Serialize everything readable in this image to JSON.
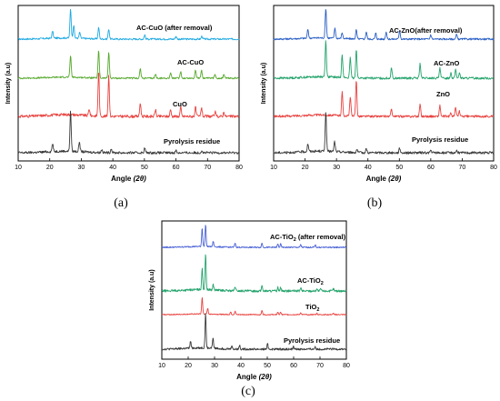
{
  "chart_data": [
    {
      "type": "line",
      "panel": "(a)",
      "xlabel": "Angle",
      "xlabel_var": "(2θ)",
      "ylabel": "Intensity (a.u)",
      "xlim": [
        10,
        80
      ],
      "xticks": [
        10,
        20,
        30,
        40,
        50,
        60,
        70,
        80
      ],
      "series": [
        {
          "name": "AC-CuO (after removal)",
          "color": "#1fa9e1",
          "peaks": [
            [
              20.9,
              0.25
            ],
            [
              26.6,
              1.0
            ],
            [
              27.6,
              0.45
            ],
            [
              29.5,
              0.2
            ],
            [
              35.5,
              0.4
            ],
            [
              38.7,
              0.35
            ],
            [
              50.1,
              0.15
            ],
            [
              60.0,
              0.1
            ],
            [
              68.2,
              0.1
            ]
          ]
        },
        {
          "name": "AC-CuO",
          "color": "#55a82c",
          "peaks": [
            [
              26.6,
              0.8
            ],
            [
              35.5,
              1.0
            ],
            [
              38.7,
              0.95
            ],
            [
              48.7,
              0.35
            ],
            [
              53.5,
              0.15
            ],
            [
              58.3,
              0.2
            ],
            [
              61.5,
              0.25
            ],
            [
              66.2,
              0.3
            ],
            [
              68.1,
              0.3
            ],
            [
              72.4,
              0.15
            ],
            [
              75.2,
              0.15
            ]
          ]
        },
        {
          "name": "CuO",
          "color": "#e8423f",
          "peaks": [
            [
              32.5,
              0.15
            ],
            [
              35.5,
              1.0
            ],
            [
              38.7,
              0.9
            ],
            [
              48.7,
              0.3
            ],
            [
              53.5,
              0.15
            ],
            [
              58.3,
              0.15
            ],
            [
              61.5,
              0.2
            ],
            [
              66.2,
              0.2
            ],
            [
              68.1,
              0.2
            ],
            [
              72.4,
              0.1
            ],
            [
              75.2,
              0.1
            ]
          ]
        },
        {
          "name": "Pyrolysis residue",
          "color": "#3a3a3a",
          "peaks": [
            [
              20.9,
              0.2
            ],
            [
              26.6,
              1.0
            ],
            [
              29.4,
              0.25
            ],
            [
              36.5,
              0.08
            ],
            [
              39.5,
              0.1
            ],
            [
              50.1,
              0.12
            ],
            [
              60.0,
              0.06
            ],
            [
              68.2,
              0.06
            ]
          ]
        }
      ]
    },
    {
      "type": "line",
      "panel": "(b)",
      "xlabel": "Angle",
      "xlabel_var": "(2θ)",
      "ylabel": "Intensity (a.u)",
      "xlim": [
        10,
        80
      ],
      "xticks": [
        10,
        20,
        30,
        40,
        50,
        60,
        70,
        80
      ],
      "series": [
        {
          "name": "AC-ZnO(after removal)",
          "color": "#2a5fc4",
          "peaks": [
            [
              20.9,
              0.3
            ],
            [
              26.6,
              1.0
            ],
            [
              29.5,
              0.35
            ],
            [
              31.8,
              0.2
            ],
            [
              36.3,
              0.3
            ],
            [
              39.5,
              0.25
            ],
            [
              42.5,
              0.2
            ],
            [
              45.8,
              0.25
            ],
            [
              50.1,
              0.3
            ],
            [
              60.0,
              0.15
            ],
            [
              68.2,
              0.15
            ]
          ]
        },
        {
          "name": "AC-ZnO",
          "color": "#23a36b",
          "peaks": [
            [
              26.6,
              1.0
            ],
            [
              31.8,
              0.65
            ],
            [
              34.4,
              0.55
            ],
            [
              36.3,
              0.8
            ],
            [
              47.5,
              0.3
            ],
            [
              56.6,
              0.4
            ],
            [
              62.9,
              0.3
            ],
            [
              66.4,
              0.15
            ],
            [
              67.9,
              0.25
            ],
            [
              69.1,
              0.15
            ]
          ]
        },
        {
          "name": "ZnO",
          "color": "#e8423f",
          "peaks": [
            [
              31.8,
              0.65
            ],
            [
              34.4,
              0.55
            ],
            [
              36.3,
              1.0
            ],
            [
              47.5,
              0.2
            ],
            [
              56.6,
              0.35
            ],
            [
              62.9,
              0.3
            ],
            [
              66.4,
              0.1
            ],
            [
              67.9,
              0.25
            ],
            [
              69.1,
              0.15
            ]
          ]
        },
        {
          "name": "Pyrolysis residue",
          "color": "#3a3a3a",
          "peaks": [
            [
              20.9,
              0.2
            ],
            [
              26.6,
              1.0
            ],
            [
              29.4,
              0.25
            ],
            [
              36.5,
              0.08
            ],
            [
              39.5,
              0.1
            ],
            [
              50.1,
              0.12
            ],
            [
              60.0,
              0.06
            ],
            [
              68.2,
              0.06
            ]
          ]
        }
      ]
    },
    {
      "type": "line",
      "panel": "(c)",
      "xlabel": "Angle",
      "xlabel_var": "(2θ)",
      "ylabel": "Intensity (a.u)",
      "xlim": [
        10,
        80
      ],
      "xticks": [
        10,
        20,
        30,
        40,
        50,
        60,
        70,
        80
      ],
      "series": [
        {
          "name": "AC-TiO",
          "name_sub": "2",
          "name_suffix": " (after removal)",
          "color": "#4a63d6",
          "peaks": [
            [
              25.3,
              0.85
            ],
            [
              26.6,
              1.0
            ],
            [
              29.5,
              0.25
            ],
            [
              37.8,
              0.2
            ],
            [
              48.0,
              0.2
            ],
            [
              54.0,
              0.15
            ],
            [
              55.1,
              0.15
            ],
            [
              62.7,
              0.12
            ],
            [
              68.2,
              0.1
            ]
          ]
        },
        {
          "name": "AC-TiO",
          "name_sub": "2",
          "name_suffix": "",
          "color": "#23a36b",
          "peaks": [
            [
              25.3,
              0.6
            ],
            [
              26.6,
              1.0
            ],
            [
              29.5,
              0.15
            ],
            [
              37.8,
              0.12
            ],
            [
              48.0,
              0.15
            ],
            [
              54.0,
              0.1
            ],
            [
              55.1,
              0.1
            ],
            [
              62.7,
              0.08
            ],
            [
              68.8,
              0.06
            ],
            [
              70.3,
              0.06
            ],
            [
              75.1,
              0.06
            ]
          ]
        },
        {
          "name": "TiO",
          "name_sub": "2",
          "name_suffix": "",
          "color": "#e8423f",
          "peaks": [
            [
              25.3,
              1.0
            ],
            [
              27.4,
              0.35
            ],
            [
              36.1,
              0.15
            ],
            [
              37.8,
              0.2
            ],
            [
              48.0,
              0.25
            ],
            [
              54.0,
              0.15
            ],
            [
              55.1,
              0.15
            ],
            [
              62.7,
              0.12
            ],
            [
              68.8,
              0.08
            ],
            [
              75.1,
              0.08
            ]
          ]
        },
        {
          "name": "Pyrolysis residue",
          "name_sub": "",
          "name_suffix": "",
          "color": "#3a3a3a",
          "peaks": [
            [
              20.9,
              0.2
            ],
            [
              26.6,
              1.0
            ],
            [
              29.4,
              0.3
            ],
            [
              36.5,
              0.1
            ],
            [
              39.5,
              0.12
            ],
            [
              50.1,
              0.15
            ],
            [
              60.0,
              0.08
            ],
            [
              68.2,
              0.08
            ]
          ]
        }
      ]
    }
  ]
}
